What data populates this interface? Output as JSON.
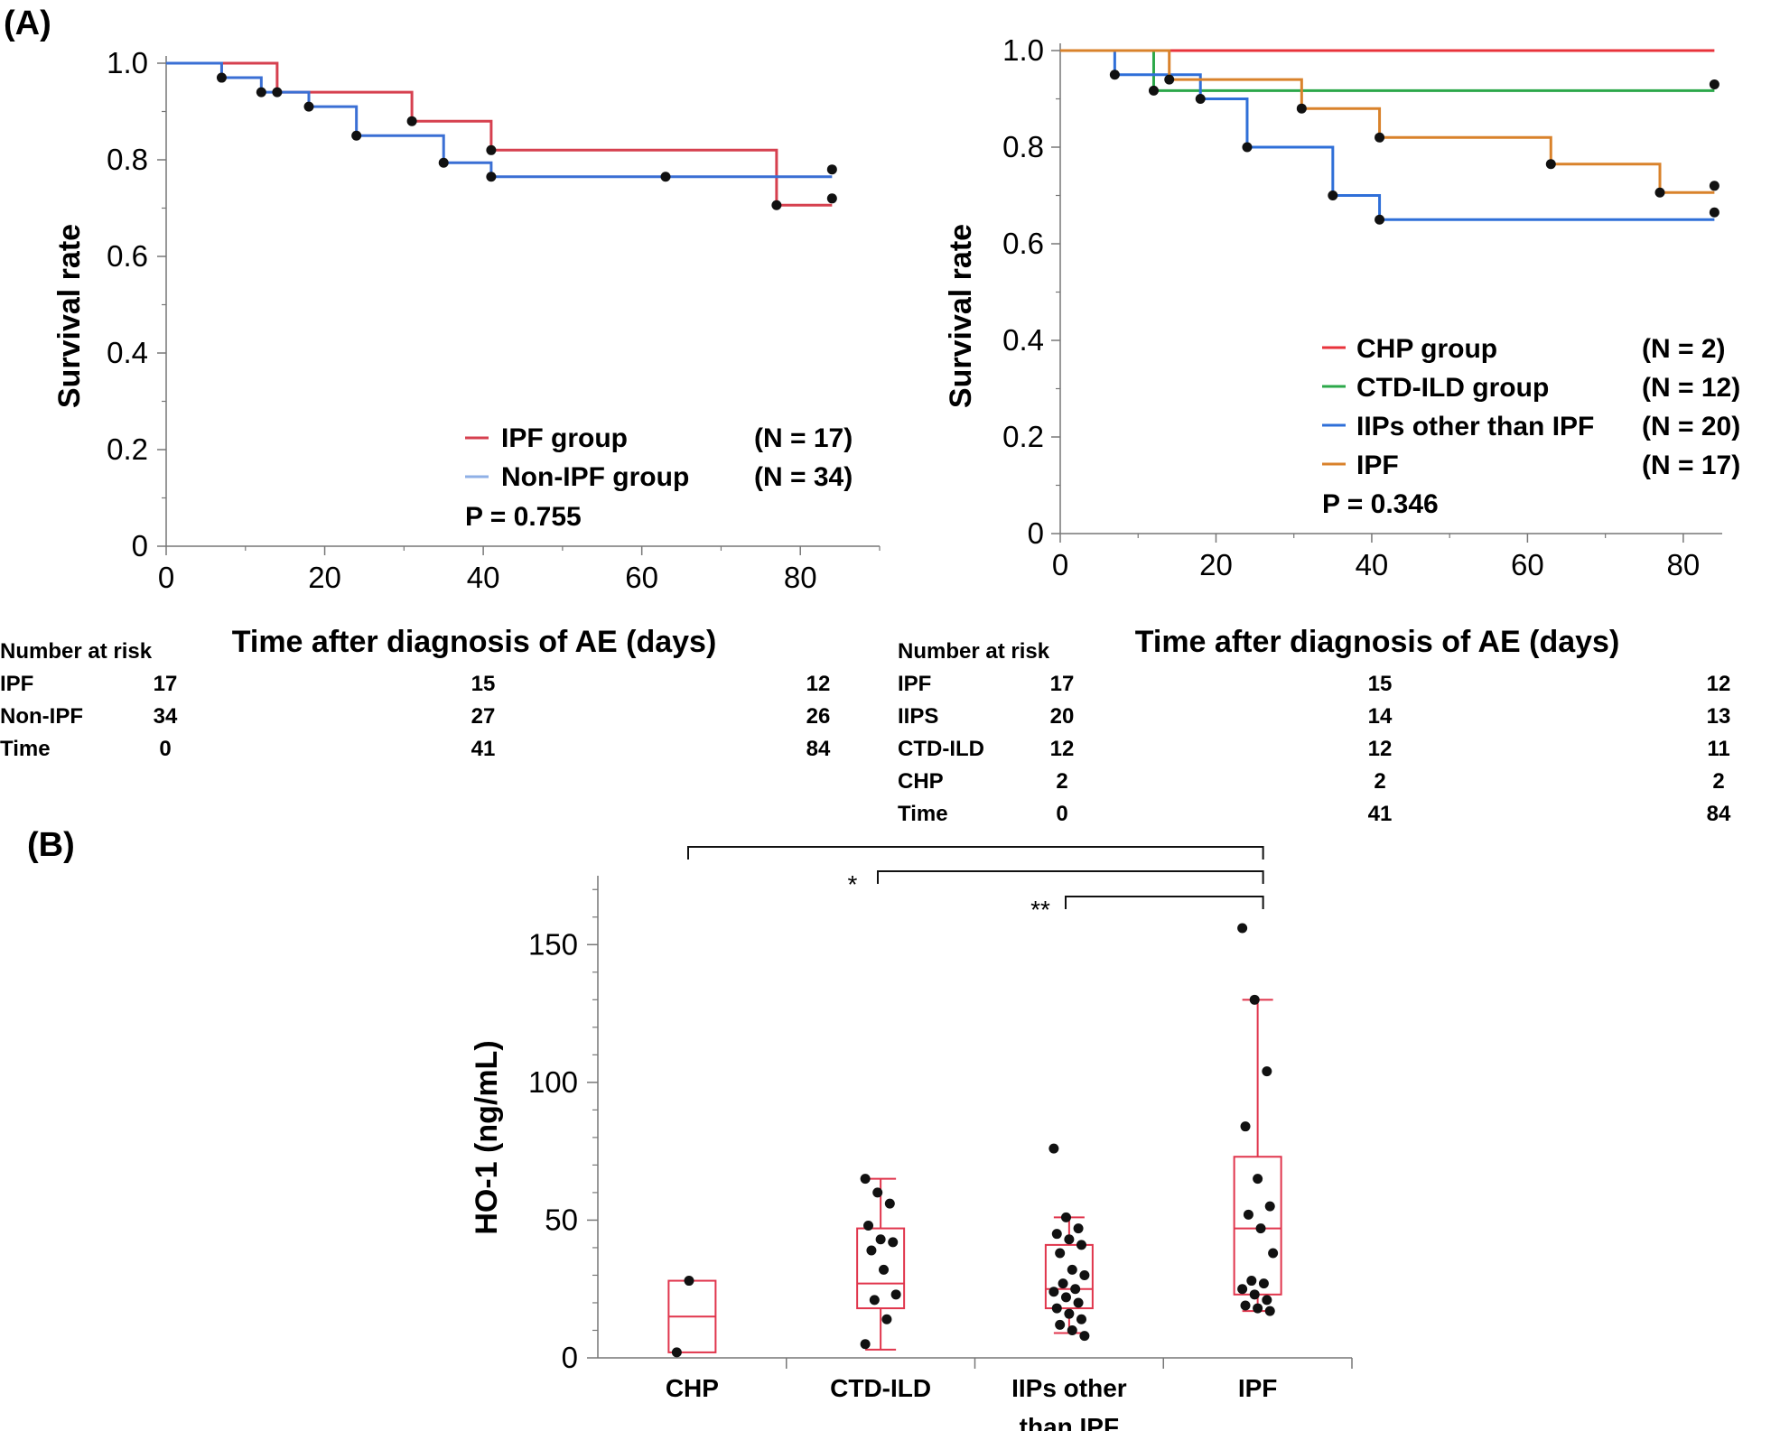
{
  "panels": {
    "a": "(A)",
    "b": "(B)"
  },
  "colors": {
    "ipf": "#d6404f",
    "non_ipf": "#3a6fd4",
    "chp": "#e8333b",
    "ctd": "#2ca84a",
    "iips": "#2f6fd8",
    "ipf_orange": "#d9822b",
    "box": "#e0354c"
  },
  "chart_data": [
    {
      "type": "line",
      "chart_id": "km_left",
      "xlabel": "Time after diagnosis of AE (days)",
      "ylabel": "Survival rate",
      "xlim": [
        0,
        90
      ],
      "ylim": [
        0,
        1
      ],
      "xticks": [
        0,
        20,
        40,
        60,
        80
      ],
      "yticks": [
        0,
        0.2,
        0.4,
        0.6,
        0.8,
        1.0
      ],
      "ytick_labels": [
        "0",
        "0.2",
        "0.4",
        "0.6",
        "0.8",
        "1.0"
      ],
      "series": [
        {
          "name": "IPF group",
          "n_label": "(N = 17)",
          "color": "#d6404f",
          "steps": [
            [
              0,
              1.0
            ],
            [
              14,
              0.94
            ],
            [
              31,
              0.88
            ],
            [
              41,
              0.82
            ],
            [
              77,
              0.706
            ],
            [
              84,
              0.706
            ]
          ],
          "censor": [
            [
              84,
              0.72
            ]
          ]
        },
        {
          "name": "Non-IPF group",
          "n_label": "(N = 34)",
          "color": "#3a6fd4",
          "steps": [
            [
              0,
              1.0
            ],
            [
              7,
              0.97
            ],
            [
              12,
              0.94
            ],
            [
              18,
              0.91
            ],
            [
              24,
              0.85
            ],
            [
              35,
              0.794
            ],
            [
              41,
              0.765
            ],
            [
              84,
              0.765
            ]
          ],
          "censor": [
            [
              7,
              0.97
            ],
            [
              12,
              0.94
            ],
            [
              14,
              0.94
            ],
            [
              18,
              0.91
            ],
            [
              24,
              0.85
            ],
            [
              31,
              0.88
            ],
            [
              35,
              0.794
            ],
            [
              41,
              0.765
            ],
            [
              41,
              0.82
            ],
            [
              63,
              0.765
            ],
            [
              77,
              0.706
            ],
            [
              84,
              0.78
            ]
          ]
        }
      ],
      "pvalue": "P = 0.755",
      "risk_table": {
        "header": "Number at risk",
        "times": [
          "0",
          "41",
          "84"
        ],
        "rows": [
          {
            "label": "IPF",
            "values": [
              "17",
              "15",
              "12"
            ]
          },
          {
            "label": "Non-IPF",
            "values": [
              "34",
              "27",
              "26"
            ]
          },
          {
            "label": "Time",
            "values": [
              "0",
              "41",
              "84"
            ]
          }
        ]
      }
    },
    {
      "type": "line",
      "chart_id": "km_right",
      "xlabel": "Time after diagnosis of AE (days)",
      "ylabel": "Survival rate",
      "xlim": [
        0,
        85
      ],
      "ylim": [
        0,
        1
      ],
      "xticks": [
        0,
        20,
        40,
        60,
        80
      ],
      "yticks": [
        0,
        0.2,
        0.4,
        0.6,
        0.8,
        1.0
      ],
      "ytick_labels": [
        "0",
        "0.2",
        "0.4",
        "0.6",
        "0.8",
        "1.0"
      ],
      "series": [
        {
          "name": "CHP group",
          "n_label": "(N = 2)",
          "color": "#e8333b",
          "steps": [
            [
              0,
              1.0
            ],
            [
              84,
              1.0
            ]
          ],
          "censor": []
        },
        {
          "name": "CTD-ILD group",
          "n_label": "(N = 12)",
          "color": "#2ca84a",
          "steps": [
            [
              0,
              1.0
            ],
            [
              12,
              0.917
            ],
            [
              84,
              0.917
            ]
          ],
          "censor": [
            [
              12,
              0.917
            ],
            [
              84,
              0.93
            ]
          ]
        },
        {
          "name": "IIPs other than  IPF",
          "n_label": "(N = 20)",
          "color": "#2f6fd8",
          "steps": [
            [
              0,
              1.0
            ],
            [
              7,
              0.95
            ],
            [
              18,
              0.9
            ],
            [
              24,
              0.8
            ],
            [
              35,
              0.7
            ],
            [
              41,
              0.65
            ],
            [
              84,
              0.65
            ]
          ],
          "censor": [
            [
              7,
              0.95
            ],
            [
              18,
              0.9
            ],
            [
              24,
              0.8
            ],
            [
              35,
              0.7
            ],
            [
              41,
              0.65
            ],
            [
              84,
              0.665
            ]
          ]
        },
        {
          "name": "IPF",
          "n_label": "(N = 17)",
          "color": "#d9822b",
          "steps": [
            [
              0,
              1.0
            ],
            [
              14,
              0.94
            ],
            [
              31,
              0.88
            ],
            [
              41,
              0.82
            ],
            [
              63,
              0.765
            ],
            [
              77,
              0.706
            ],
            [
              84,
              0.706
            ]
          ],
          "censor": [
            [
              14,
              0.94
            ],
            [
              31,
              0.88
            ],
            [
              41,
              0.82
            ],
            [
              63,
              0.765
            ],
            [
              77,
              0.706
            ],
            [
              84,
              0.72
            ]
          ]
        }
      ],
      "pvalue": "P = 0.346",
      "risk_table": {
        "header": "Number at risk",
        "times": [
          "0",
          "41",
          "84"
        ],
        "rows": [
          {
            "label": "IPF",
            "values": [
              "17",
              "15",
              "12"
            ]
          },
          {
            "label": "IIPS",
            "values": [
              "20",
              "14",
              "13"
            ]
          },
          {
            "label": "CTD-ILD",
            "values": [
              "12",
              "12",
              "11"
            ]
          },
          {
            "label": "CHP",
            "values": [
              "2",
              "2",
              "2"
            ]
          },
          {
            "label": "Time",
            "values": [
              "0",
              "41",
              "84"
            ]
          }
        ]
      }
    },
    {
      "type": "box",
      "chart_id": "ho1_box",
      "ylabel": "HO-1 (ng/mL)",
      "ylim": [
        0,
        175
      ],
      "yticks": [
        0,
        50,
        100,
        150
      ],
      "categories": [
        "CHP",
        "CTD-ILD",
        "IIPs other",
        "IPF"
      ],
      "category_line2": [
        "",
        "",
        "than IPF",
        ""
      ],
      "boxes": [
        {
          "q1": 2,
          "median": 15,
          "q3": 28,
          "whisker_low": 2,
          "whisker_high": 28
        },
        {
          "q1": 18,
          "median": 27,
          "q3": 47,
          "whisker_low": 3,
          "whisker_high": 65
        },
        {
          "q1": 18,
          "median": 25,
          "q3": 41,
          "whisker_low": 9,
          "whisker_high": 51
        },
        {
          "q1": 23,
          "median": 47,
          "q3": 73,
          "whisker_low": 17,
          "whisker_high": 130
        }
      ],
      "points": [
        [
          2,
          28
        ],
        [
          65,
          60,
          56,
          48,
          43,
          42,
          39,
          32,
          23,
          21,
          14,
          5
        ],
        [
          76,
          51,
          47,
          45,
          43,
          41,
          38,
          32,
          30,
          27,
          25,
          24,
          22,
          20,
          18,
          16,
          14,
          12,
          10,
          8
        ],
        [
          156,
          130,
          104,
          84,
          65,
          55,
          52,
          47,
          38,
          28,
          27,
          25,
          23,
          21,
          19,
          18,
          17
        ]
      ],
      "significance": [
        {
          "from": 0,
          "to": 3,
          "label": ""
        },
        {
          "from": 1,
          "to": 3,
          "label": "*"
        },
        {
          "from": 2,
          "to": 3,
          "label": "**"
        }
      ]
    }
  ]
}
